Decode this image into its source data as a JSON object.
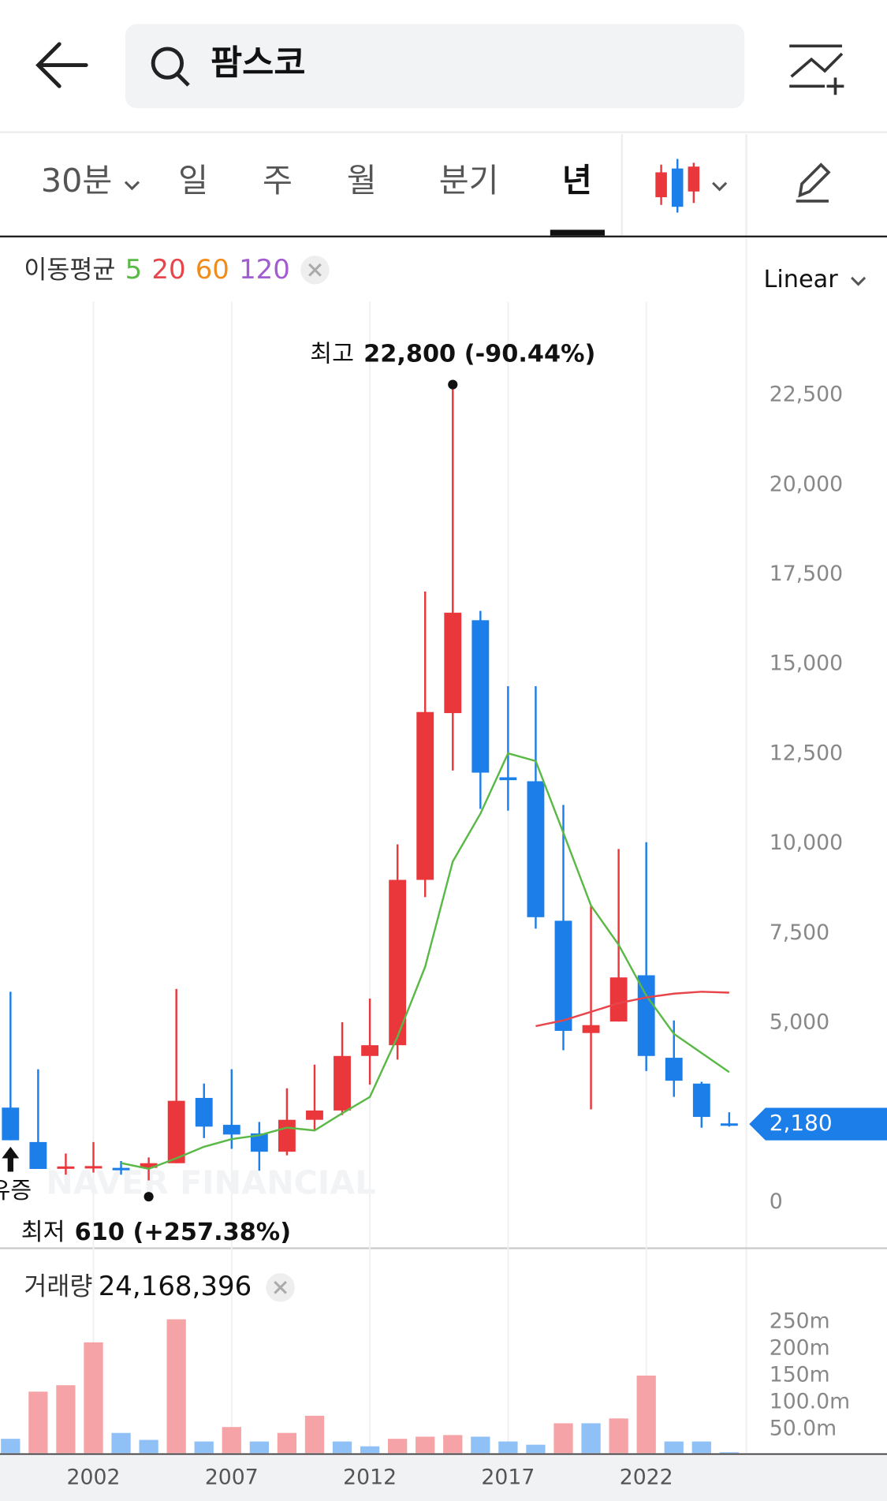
{
  "header": {
    "search": "팜스코"
  },
  "tabs": [
    "30분",
    "일",
    "주",
    "월",
    "분기",
    "년"
  ],
  "active_tab": 5,
  "scale_mode": "Linear",
  "chart_data": [
    {
      "type": "candlestick",
      "legend_title": "이동평균",
      "x": [
        1999,
        2000,
        2001,
        2002,
        2003,
        2004,
        2005,
        2006,
        2007,
        2008,
        2009,
        2010,
        2011,
        2012,
        2013,
        2014,
        2015,
        2016,
        2017,
        2018,
        2019,
        2020,
        2021,
        2022,
        2023,
        2024,
        2025
      ],
      "open": [
        2640,
        1680,
        980,
        980,
        960,
        960,
        1090,
        2910,
        2160,
        1920,
        1410,
        2300,
        2560,
        4080,
        4380,
        8990,
        13640,
        16230,
        11850,
        11740,
        7850,
        4720,
        5040,
        6330,
        4030,
        3310,
        2200
      ],
      "high": [
        5870,
        3710,
        1360,
        1680,
        1150,
        1250,
        5950,
        3310,
        3710,
        2240,
        3180,
        3840,
        5020,
        5680,
        9980,
        17030,
        22800,
        16490,
        14390,
        14390,
        11080,
        8250,
        9850,
        10040,
        5070,
        3360,
        2510
      ],
      "low": [
        1730,
        930,
        770,
        830,
        770,
        610,
        1090,
        1790,
        1490,
        880,
        1310,
        2030,
        2430,
        3280,
        3980,
        8510,
        12040,
        10970,
        10920,
        7630,
        4240,
        2590,
        5040,
        3660,
        2940,
        2080,
        2110
      ],
      "close": [
        1730,
        930,
        1000,
        1010,
        920,
        1090,
        2830,
        2110,
        1890,
        1410,
        2300,
        2560,
        4080,
        4380,
        8990,
        13670,
        16440,
        11980,
        11770,
        7950,
        4780,
        4940,
        6270,
        4080,
        3390,
        2380,
        2180
      ],
      "up_color": "#e9373c",
      "down_color": "#1b7ee9",
      "series": [
        {
          "name": "5",
          "color": "#5ab946",
          "values": [
            null,
            null,
            null,
            null,
            1094,
            934,
            1228,
            1548,
            1762,
            1868,
            2082,
            2002,
            2482,
            2936,
            4617,
            6566,
            9502,
            10836,
            12518,
            12304,
            10302,
            8274,
            7180,
            5765,
            4697,
            4164,
            3630
          ]
        },
        {
          "name": "20",
          "color": "#e8454a",
          "values": [
            null,
            null,
            null,
            null,
            null,
            null,
            null,
            null,
            null,
            null,
            null,
            null,
            null,
            null,
            null,
            null,
            null,
            null,
            null,
            4911,
            5071,
            5311,
            5552,
            5712,
            5818,
            5872,
            5845
          ]
        },
        {
          "name": "60",
          "color": "#f08c1a",
          "values": [
            null,
            null,
            null,
            null,
            null,
            null,
            null,
            null,
            null,
            null,
            null,
            null,
            null,
            null,
            null,
            null,
            null,
            null,
            null,
            null,
            null,
            null,
            null,
            null,
            null,
            null,
            null
          ]
        },
        {
          "name": "120",
          "color": "#a25bd0",
          "values": [
            null,
            null,
            null,
            null,
            null,
            null,
            null,
            null,
            null,
            null,
            null,
            null,
            null,
            null,
            null,
            null,
            null,
            null,
            null,
            null,
            null,
            null,
            null,
            null,
            null,
            null,
            null
          ]
        }
      ],
      "xlim": [
        1998.62,
        2025.62
      ],
      "ylim": [
        -1255,
        25115
      ],
      "yticks": [
        0,
        {
          "value": 5000,
          "label": "5,000"
        },
        {
          "value": 7500,
          "label": "7,500"
        },
        {
          "value": 10000,
          "label": "10,000"
        },
        {
          "value": 12500,
          "label": "12,500"
        },
        {
          "value": 15000,
          "label": "15,000"
        },
        {
          "value": 17500,
          "label": "17,500"
        },
        {
          "value": 20000,
          "label": "20,000"
        },
        {
          "value": 22500,
          "label": "22,500"
        }
      ],
      "high_mark": {
        "label": "최고",
        "x": 2015,
        "value": 22800,
        "value_label": "22,800 (-90.44%)"
      },
      "low_mark": {
        "label": "최저",
        "x": 2004,
        "value": 610,
        "value_label": "610 (+257.38%)"
      },
      "event": {
        "x": 1999,
        "label": "유증"
      },
      "last_price": {
        "value": 2180,
        "label": "2,180"
      },
      "watermark": "NAVER FINANCIAL"
    },
    {
      "type": "bar",
      "title": "거래량",
      "total_label": "24,168,396",
      "x": [
        1999,
        2000,
        2001,
        2002,
        2003,
        2004,
        2005,
        2006,
        2007,
        2008,
        2009,
        2010,
        2011,
        2012,
        2013,
        2014,
        2015,
        2016,
        2017,
        2018,
        2019,
        2020,
        2021,
        2022,
        2023,
        2024,
        2025
      ],
      "values": [
        32,
        120,
        132,
        212,
        43,
        30,
        255,
        27,
        54,
        27,
        43,
        75,
        27,
        18,
        32,
        36,
        39,
        36,
        27,
        21,
        61,
        61,
        70,
        150,
        27,
        27,
        7
      ],
      "colors": [
        "#8fc0f6",
        "#f5a3a6",
        "#f5a3a6",
        "#f5a3a6",
        "#8fc0f6",
        "#8fc0f6",
        "#f5a3a6",
        "#8fc0f6",
        "#f5a3a6",
        "#8fc0f6",
        "#f5a3a6",
        "#f5a3a6",
        "#8fc0f6",
        "#8fc0f6",
        "#f5a3a6",
        "#f5a3a6",
        "#f5a3a6",
        "#8fc0f6",
        "#8fc0f6",
        "#8fc0f6",
        "#f5a3a6",
        "#8fc0f6",
        "#f5a3a6",
        "#f5a3a6",
        "#8fc0f6",
        "#8fc0f6",
        "#8fc0f6"
      ],
      "xlim": [
        1998.62,
        2025.62
      ],
      "xticks": [
        2002,
        2007,
        2012,
        2017,
        2022
      ],
      "ylim": [
        0,
        278.6
      ],
      "yticks": [
        {
          "value": 50,
          "label": "50.0m"
        },
        {
          "value": 100,
          "label": "100.0m"
        },
        {
          "value": 150,
          "label": "150m"
        },
        {
          "value": 200,
          "label": "200m"
        },
        {
          "value": 250,
          "label": "250m"
        }
      ]
    }
  ]
}
